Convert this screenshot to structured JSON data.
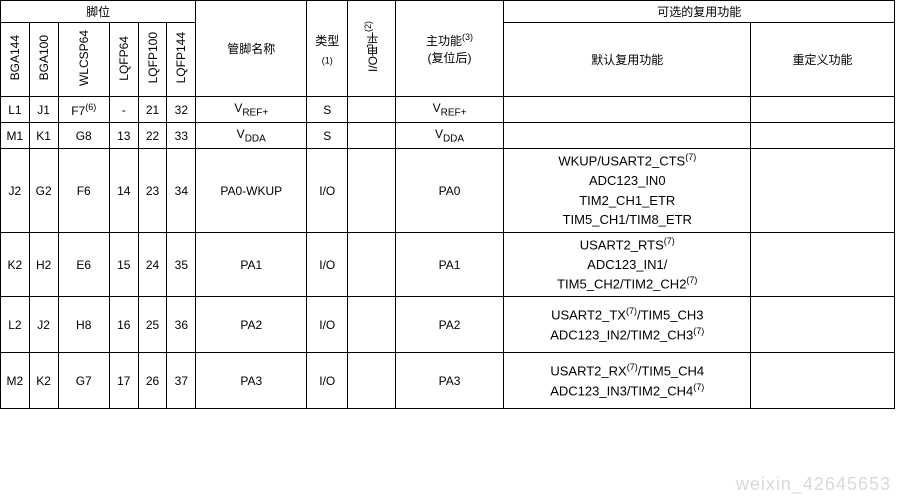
{
  "headers": {
    "pkg_group": "脚位",
    "alt_group": "可选的复用功能",
    "packages": [
      "BGA144",
      "BGA100",
      "WLCSP64",
      "LQFP64",
      "LQFP100",
      "LQFP144"
    ],
    "pin_name": "管脚名称",
    "type": "类型",
    "type_note": "(1)",
    "io_level": "I/O电平",
    "io_level_note": "(2)",
    "main_func": "主功能",
    "main_func_note": "(3)",
    "main_func_sub": "(复位后)",
    "alt_default": "默认复用功能",
    "alt_remap": "重定义功能"
  },
  "rows": [
    {
      "pkg": [
        "L1",
        "J1",
        "F7⁽⁶⁾",
        "-",
        "21",
        "32"
      ],
      "name_html": "V<sub>REF+</sub>",
      "type": "S",
      "level": "",
      "main_html": "V<sub>REF+</sub>",
      "alt": "",
      "remap": ""
    },
    {
      "pkg": [
        "M1",
        "K1",
        "G8",
        "13",
        "22",
        "33"
      ],
      "name_html": "V<sub>DDA</sub>",
      "type": "S",
      "level": "",
      "main_html": "V<sub>DDA</sub>",
      "alt": "",
      "remap": ""
    },
    {
      "pkg": [
        "J2",
        "G2",
        "F6",
        "14",
        "23",
        "34"
      ],
      "name_html": "PA0-WKUP",
      "type": "I/O",
      "level": "",
      "main_html": "PA0",
      "alt": "WKUP/USART2_CTS<sup>(7)</sup><br>ADC123_IN0<br>TIM2_CH1_ETR<br>TIM5_CH1/TIM8_ETR",
      "remap": ""
    },
    {
      "pkg": [
        "K2",
        "H2",
        "E6",
        "15",
        "24",
        "35"
      ],
      "name_html": "PA1",
      "type": "I/O",
      "level": "",
      "main_html": "PA1",
      "alt": "USART2_RTS<sup>(7)</sup><br>ADC123_IN1/<br>TIM5_CH2/TIM2_CH2<sup>(7)</sup>",
      "remap": ""
    },
    {
      "pkg": [
        "L2",
        "J2",
        "H8",
        "16",
        "25",
        "36"
      ],
      "name_html": "PA2",
      "type": "I/O",
      "level": "",
      "main_html": "PA2",
      "alt": "USART2_TX<sup>(7)</sup>/TIM5_CH3<br>ADC123_IN2/TIM2_CH3<sup>(7)</sup>",
      "remap": ""
    },
    {
      "pkg": [
        "M2",
        "K2",
        "G7",
        "17",
        "26",
        "37"
      ],
      "name_html": "PA3",
      "type": "I/O",
      "level": "",
      "main_html": "PA3",
      "alt": "USART2_RX<sup>(7)</sup>/TIM5_CH4<br>ADC123_IN3/TIM2_CH4<sup>(7)</sup>",
      "remap": ""
    }
  ],
  "watermark": "weixin_42645653"
}
